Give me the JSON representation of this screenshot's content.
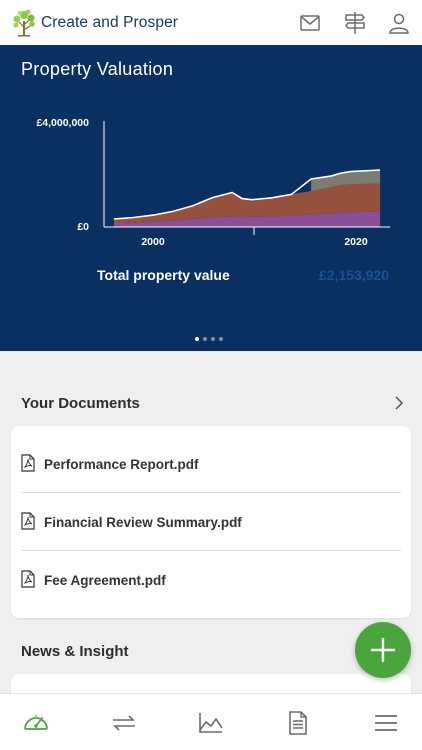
{
  "brand": {
    "name": "Create and Prosper"
  },
  "top_icons": [
    "mail-icon",
    "signpost-icon",
    "user-icon"
  ],
  "hero": {
    "title": "Property Valuation",
    "total_label": "Total property value",
    "total_value": "£2,153,920",
    "carousel_pages": 4,
    "carousel_active": 0
  },
  "chart_data": {
    "type": "area",
    "stacked": true,
    "x_tick_labels": [
      "2000",
      "2020"
    ],
    "y_tick_labels": [
      "£0",
      "£4,000,000"
    ],
    "ylim": [
      0,
      4000000
    ],
    "xlim": [
      1995,
      2024
    ],
    "grid": false,
    "x": [
      1996,
      1998,
      2000,
      2002,
      2004,
      2006,
      2008,
      2009,
      2010,
      2012,
      2014,
      2016,
      2018,
      2019,
      2020,
      2023
    ],
    "series": [
      {
        "values": [
          150000,
          160000,
          200000,
          240000,
          300000,
          360000,
          400000,
          370000,
          380000,
          400000,
          430000,
          460000,
          500000,
          530000,
          560000,
          580000
        ],
        "color": "#8b4f98"
      },
      {
        "values": [
          150000,
          200000,
          250000,
          350000,
          500000,
          750000,
          900000,
          700000,
          650000,
          700000,
          800000,
          900000,
          1000000,
          1050000,
          1050000,
          1060000
        ],
        "color": "#96503e"
      },
      {
        "values": [
          0,
          0,
          0,
          0,
          0,
          0,
          0,
          0,
          0,
          0,
          0,
          450000,
          420000,
          450000,
          480000,
          510000
        ],
        "color": "#7b7b72"
      }
    ]
  },
  "documents": {
    "title": "Your Documents",
    "items": [
      {
        "name": "Performance Report.pdf"
      },
      {
        "name": "Financial Review Summary.pdf"
      },
      {
        "name": "Fee Agreement.pdf"
      }
    ]
  },
  "news": {
    "title": "News & Insight"
  },
  "bottom_nav": [
    "dashboard-gauge-icon",
    "transfer-arrows-icon",
    "performance-chart-icon",
    "document-icon",
    "menu-icon"
  ],
  "colors": {
    "hero_bg": "#093061",
    "accent_green": "#4aa53d",
    "total_value": "#1f4f9a"
  }
}
